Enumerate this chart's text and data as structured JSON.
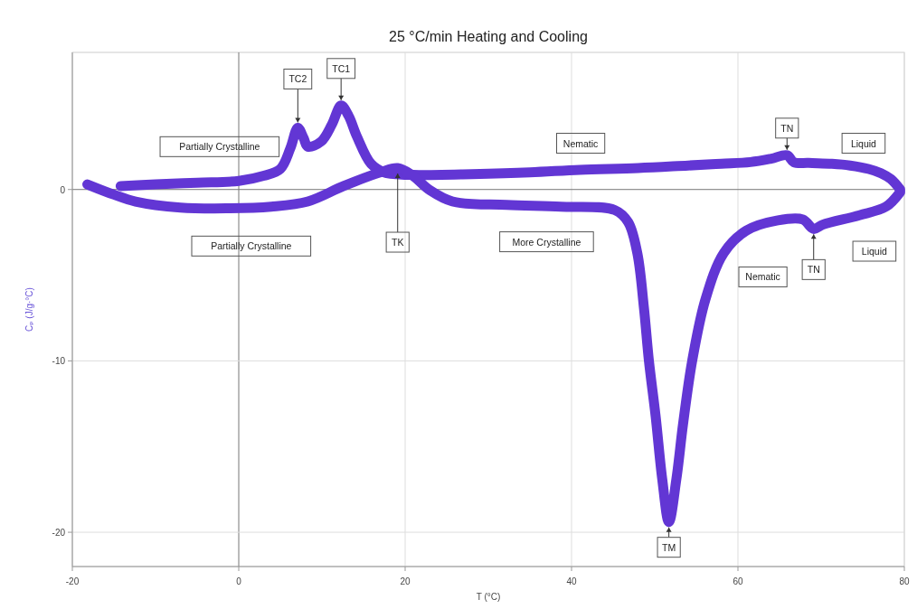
{
  "chart_data": {
    "type": "line",
    "title": "25 °C/min Heating and Cooling",
    "xlabel": "T (°C)",
    "ylabel": "Cₚ (J/g·°C)",
    "xlim": [
      -20,
      80
    ],
    "ylim": [
      -22,
      8
    ],
    "xticks": [
      -20,
      0,
      20,
      40,
      60,
      80
    ],
    "yticks": [
      -20,
      -10,
      0
    ],
    "grid": true,
    "line_style": "solid",
    "marker": "none",
    "series": [
      {
        "color": "#6236d4",
        "x": [
          -14.2,
          -10,
          -5,
          0,
          3,
          5,
          6.2,
          7.1,
          7.8,
          8.3,
          9.9,
          11.2,
          12.3,
          13.2,
          14.2,
          15.9,
          17.5,
          19,
          21,
          28,
          35,
          41,
          48,
          54,
          58,
          61.5,
          64,
          65.9,
          66.7,
          68.5,
          71.3,
          73.5,
          75.7,
          77.2,
          78.4,
          79.5
        ],
        "values": [
          0.2,
          0.3,
          0.4,
          0.5,
          0.8,
          1.2,
          2.4,
          3.6,
          3.0,
          2.5,
          2.8,
          3.8,
          4.9,
          4.3,
          3.1,
          1.5,
          1.0,
          0.9,
          0.85,
          0.9,
          1.0,
          1.15,
          1.25,
          1.4,
          1.5,
          1.6,
          1.8,
          2.0,
          1.6,
          1.55,
          1.5,
          1.4,
          1.2,
          0.95,
          0.6,
          0
        ]
      },
      {
        "color": "#6236d4",
        "x": [
          -18.2,
          -15,
          -12.4,
          -7,
          -1.5,
          3.9,
          8.3,
          12.6,
          17,
          19.1,
          20.8,
          23,
          25.7,
          32.2,
          38.7,
          45.2,
          46.8,
          47.9,
          48.7,
          49.3,
          50.1,
          50.9,
          51.7,
          52.6,
          53.4,
          54.5,
          56.1,
          58.3,
          61,
          64.8,
          67.8,
          69.1,
          70.2,
          74.6,
          77.8,
          79.5
        ],
        "values": [
          0.3,
          -0.3,
          -0.7,
          -1.05,
          -1.1,
          -1.0,
          -0.7,
          0.2,
          1.0,
          1.25,
          0.85,
          -0.05,
          -0.7,
          -0.9,
          -1.0,
          -1.2,
          -1.9,
          -3.7,
          -6.9,
          -10,
          -13.2,
          -16.9,
          -19.4,
          -16.9,
          -13.7,
          -10,
          -6.4,
          -3.7,
          -2.4,
          -1.8,
          -1.75,
          -2.3,
          -2.05,
          -1.5,
          -1.0,
          -0.15
        ]
      }
    ],
    "annotations": [
      {
        "text": "TC2",
        "x": 7.1,
        "y": 3.6
      },
      {
        "text": "TC1",
        "x": 12.3,
        "y": 4.9
      },
      {
        "text": "TK",
        "x": 19.1,
        "y": 1.25
      },
      {
        "text": "TN",
        "x": 65.9,
        "y": 2.0
      },
      {
        "text": "TN",
        "x": 69.1,
        "y": -2.3
      },
      {
        "text": "TM",
        "x": 51.7,
        "y": -19.4
      },
      "Partially Crystalline",
      "Partially Crystalline",
      "Nematic",
      "More Crystalline",
      "Nematic",
      "Liquid",
      "Liquid"
    ]
  }
}
